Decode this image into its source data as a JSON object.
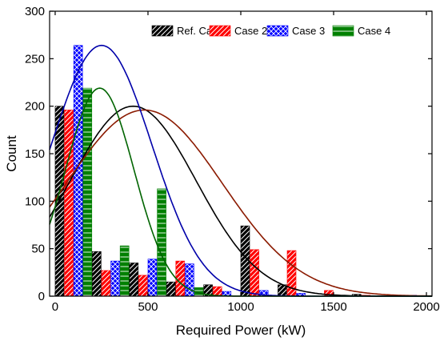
{
  "chart_data": {
    "type": "bar",
    "title": "",
    "xlabel": "Required Power (kW)",
    "ylabel": "Count",
    "xlim": [
      -30,
      2030
    ],
    "ylim": [
      0,
      300
    ],
    "x_ticks": [
      0,
      500,
      1000,
      1500,
      2000
    ],
    "y_ticks": [
      0,
      50,
      100,
      150,
      200,
      250,
      300
    ],
    "bin_width": 200,
    "bin_starts": [
      0,
      200,
      400,
      600,
      800,
      1000,
      1200,
      1400,
      1600,
      1800
    ],
    "legend_position": "top-right",
    "grid": false,
    "series": [
      {
        "name": "Ref. Case",
        "color": "#000000",
        "pattern": "diagonal-hatch",
        "values": [
          200,
          47,
          35,
          15,
          12,
          74,
          12,
          0,
          2,
          0
        ],
        "fit_curve": {
          "type": "normal",
          "peak": 200,
          "mean": 420,
          "sd": 340
        }
      },
      {
        "name": "Case 2",
        "color": "#ff0000",
        "pattern": "diagonal-hatch",
        "values": [
          196,
          27,
          22,
          37,
          10,
          49,
          48,
          6,
          1,
          1
        ],
        "fit_curve": {
          "type": "normal",
          "peak": 196,
          "mean": 480,
          "sd": 420
        }
      },
      {
        "name": "Case 3",
        "color": "#0000ff",
        "pattern": "crosshatch",
        "values": [
          264,
          37,
          39,
          34,
          5,
          6,
          3,
          0,
          0,
          1
        ],
        "fit_curve": {
          "type": "normal",
          "peak": 264,
          "mean": 250,
          "sd": 270
        }
      },
      {
        "name": "Case 4",
        "color": "#008000",
        "pattern": "horizontal-lines",
        "values": [
          219,
          53,
          113,
          9,
          0,
          0,
          0,
          0,
          0,
          0
        ],
        "fit_curve": {
          "type": "normal",
          "peak": 219,
          "mean": 240,
          "sd": 185
        }
      }
    ]
  }
}
